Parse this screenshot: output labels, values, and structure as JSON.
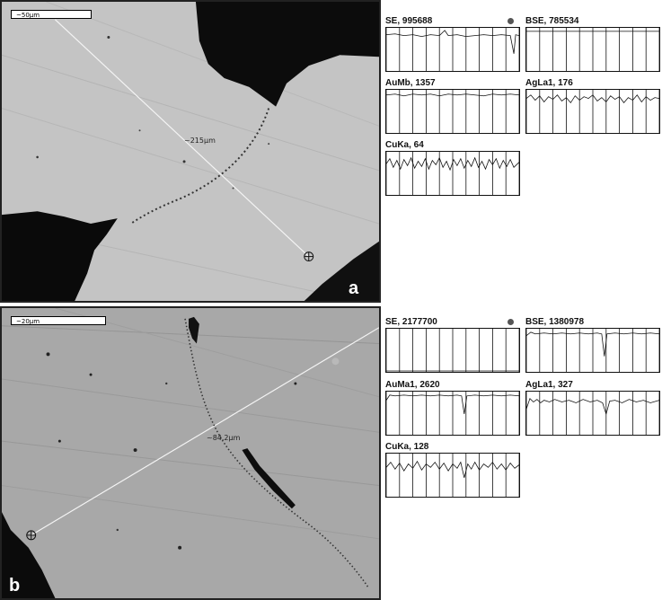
{
  "panel_a": {
    "letter": "a",
    "scale_label": "~50µm",
    "distance_label": "~215µm",
    "profiles": [
      {
        "label": "SE, 995688"
      },
      {
        "label": "BSE, 785534"
      },
      {
        "label": "AuMb, 1357"
      },
      {
        "label": "AgLa1, 176"
      },
      {
        "label": "CuKa, 64"
      }
    ]
  },
  "panel_b": {
    "letter": "b",
    "scale_label": "~20µm",
    "distance_label": "~84.2µm",
    "profiles": [
      {
        "label": "SE, 2177700"
      },
      {
        "label": "BSE, 1380978"
      },
      {
        "label": "AuMa1, 2620"
      },
      {
        "label": "AgLa1, 327"
      },
      {
        "label": "CuKa, 128"
      }
    ]
  },
  "colors": {
    "panel_a_background": "#c9c9c9",
    "panel_b_background": "#a9a9a9",
    "inclusion_dark": "#0b0b0b",
    "trace_line": "#1a1a1a"
  }
}
